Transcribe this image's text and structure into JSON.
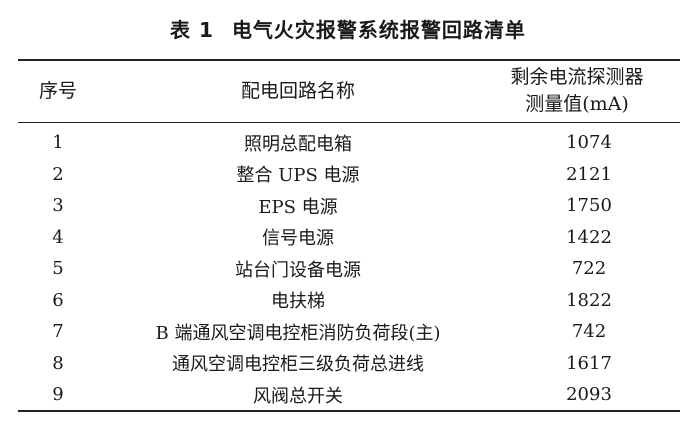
{
  "table": {
    "caption_label": "表 1",
    "caption_title": "电气火灾报警系统报警回路清单",
    "headers": {
      "seq": "序号",
      "name": "配电回路名称",
      "value_line1": "剩余电流探测器",
      "value_line2": "测量值(mA)"
    },
    "rows": [
      {
        "seq": "1",
        "name": "照明总配电箱",
        "value": "1074"
      },
      {
        "seq": "2",
        "name": "整合 UPS 电源",
        "value": "2121"
      },
      {
        "seq": "3",
        "name": "EPS 电源",
        "value": "1750"
      },
      {
        "seq": "4",
        "name": "信号电源",
        "value": "1422"
      },
      {
        "seq": "5",
        "name": "站台门设备电源",
        "value": "722"
      },
      {
        "seq": "6",
        "name": "电扶梯",
        "value": "1822"
      },
      {
        "seq": "7",
        "name": "B 端通风空调电控柜消防负荷段(主)",
        "value": "742"
      },
      {
        "seq": "8",
        "name": "通风空调电控柜三级负荷总进线",
        "value": "1617"
      },
      {
        "seq": "9",
        "name": "风阀总开关",
        "value": "2093"
      }
    ]
  }
}
